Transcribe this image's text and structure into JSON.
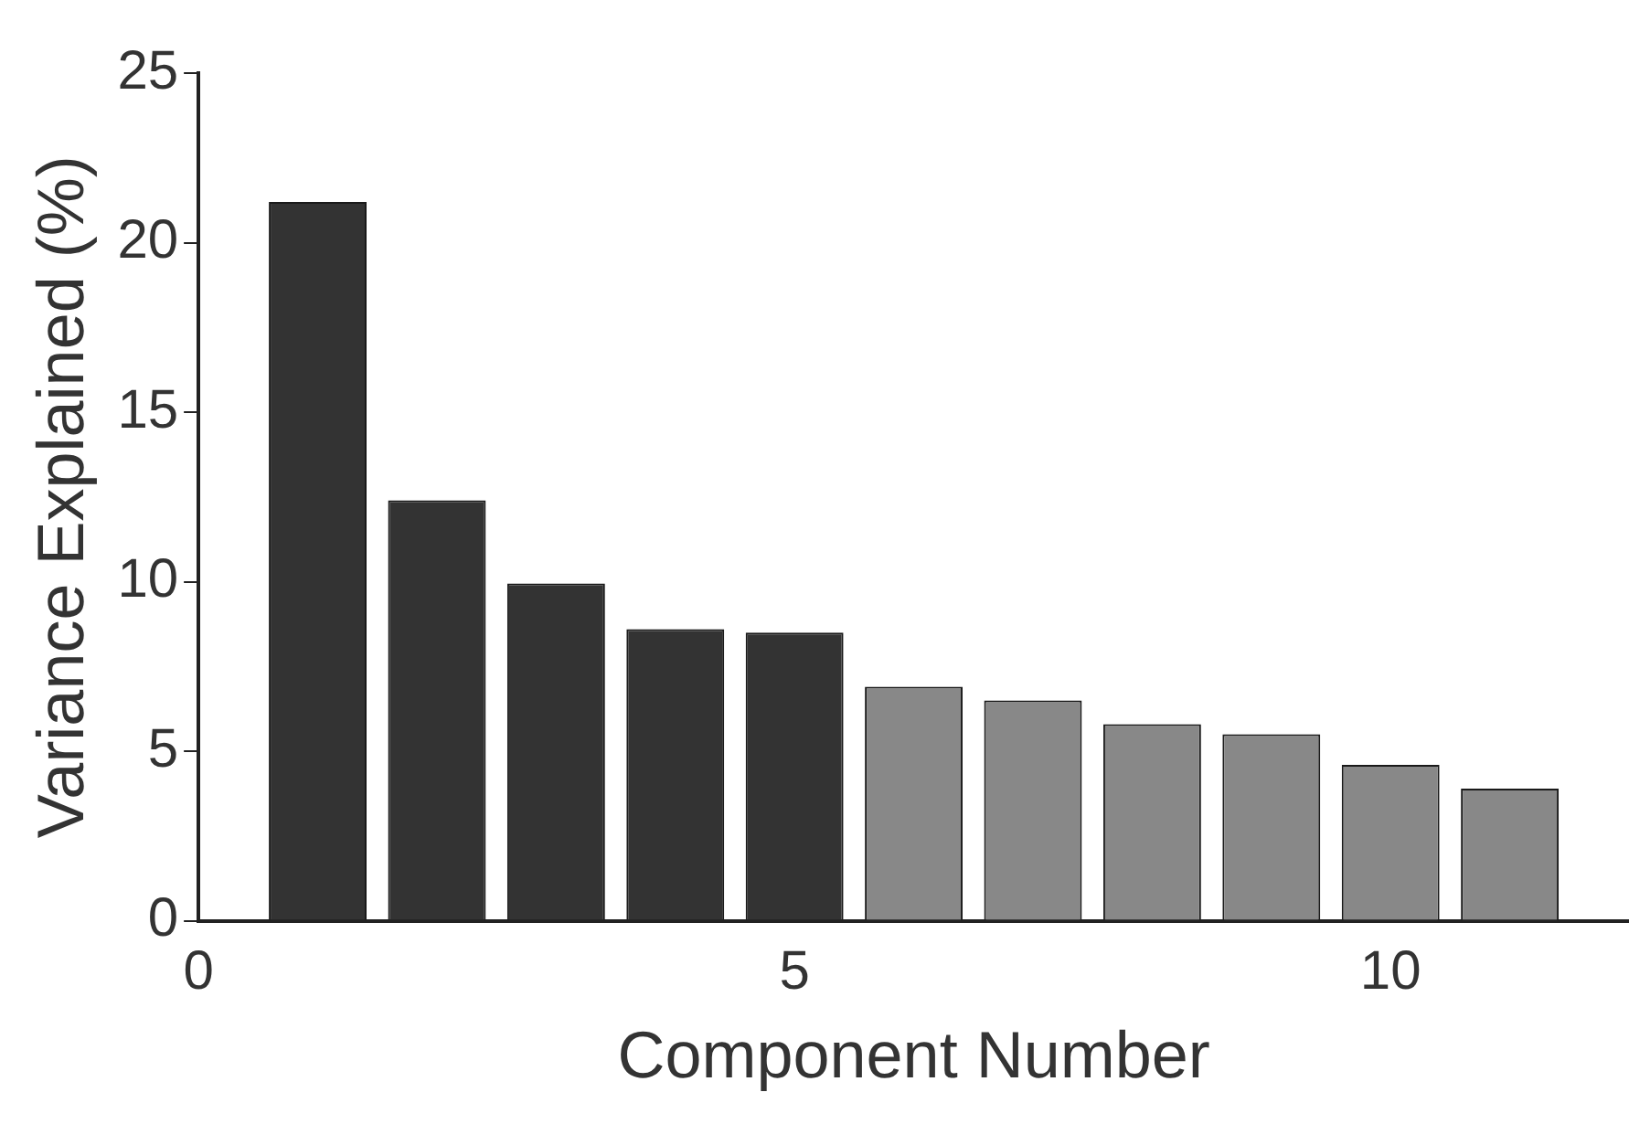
{
  "chart_data": {
    "type": "bar",
    "xlabel": "Component Number",
    "ylabel": "Variance Explained (%)",
    "x": [
      1,
      2,
      3,
      4,
      5,
      6,
      7,
      8,
      9,
      10,
      11
    ],
    "values": [
      21.2,
      12.4,
      9.95,
      8.6,
      8.5,
      6.9,
      6.5,
      5.8,
      5.5,
      4.6,
      3.9
    ],
    "colors": [
      "#333333",
      "#333333",
      "#333333",
      "#333333",
      "#333333",
      "#888888",
      "#888888",
      "#888888",
      "#888888",
      "#888888",
      "#888888"
    ],
    "xlim": [
      0,
      12
    ],
    "xticks": [
      0,
      5,
      10
    ],
    "ylim": [
      0,
      25
    ],
    "yticks": [
      0,
      5,
      10,
      15,
      20,
      25
    ],
    "grid": false,
    "legend": false
  }
}
